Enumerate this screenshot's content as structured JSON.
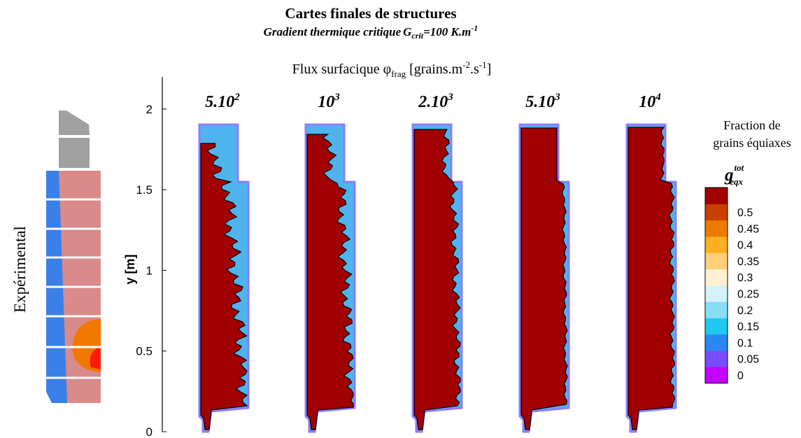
{
  "title": "Cartes finales de structures",
  "subtitle": {
    "text": "Gradient thermique critique",
    "symbol": "G",
    "sub": "crit",
    "rest": "=100 K.m",
    "sup": "-1"
  },
  "flux_label": {
    "text": "Flux surfacique φ",
    "sub": "frag",
    "rest1": " [grains.m",
    "sup1": "-2",
    "rest2": ".s",
    "sup2": "-1",
    "rest3": "]"
  },
  "experimental_label": "Expérimental",
  "y_axis": {
    "label": "y [m]",
    "ylim": [
      0,
      2.2
    ],
    "yticks": [
      0,
      0.5,
      1,
      1.5,
      2
    ]
  },
  "panels": [
    {
      "base": "5.10",
      "exp": "2"
    },
    {
      "base": "10",
      "exp": "3"
    },
    {
      "base": "2.10",
      "exp": "3"
    },
    {
      "base": "5.10",
      "exp": "3"
    },
    {
      "base": "10",
      "exp": "4"
    }
  ],
  "colorbar": {
    "title_lines": [
      "Fraction de",
      "grains équiaxes"
    ],
    "symbol": "g",
    "sup": "tot",
    "sub": "eqx",
    "levels": [
      0,
      0.05,
      0.1,
      0.15,
      0.2,
      0.25,
      0.3,
      0.35,
      0.4,
      0.45,
      0.5
    ],
    "colors": [
      "#c400ff",
      "#7a4cff",
      "#2b88f0",
      "#1ec8f0",
      "#86def5",
      "#d6f1f7",
      "#fff0d2",
      "#ffcf7a",
      "#ffb020",
      "#ec7a00",
      "#c84000",
      "#a00000"
    ]
  }
}
